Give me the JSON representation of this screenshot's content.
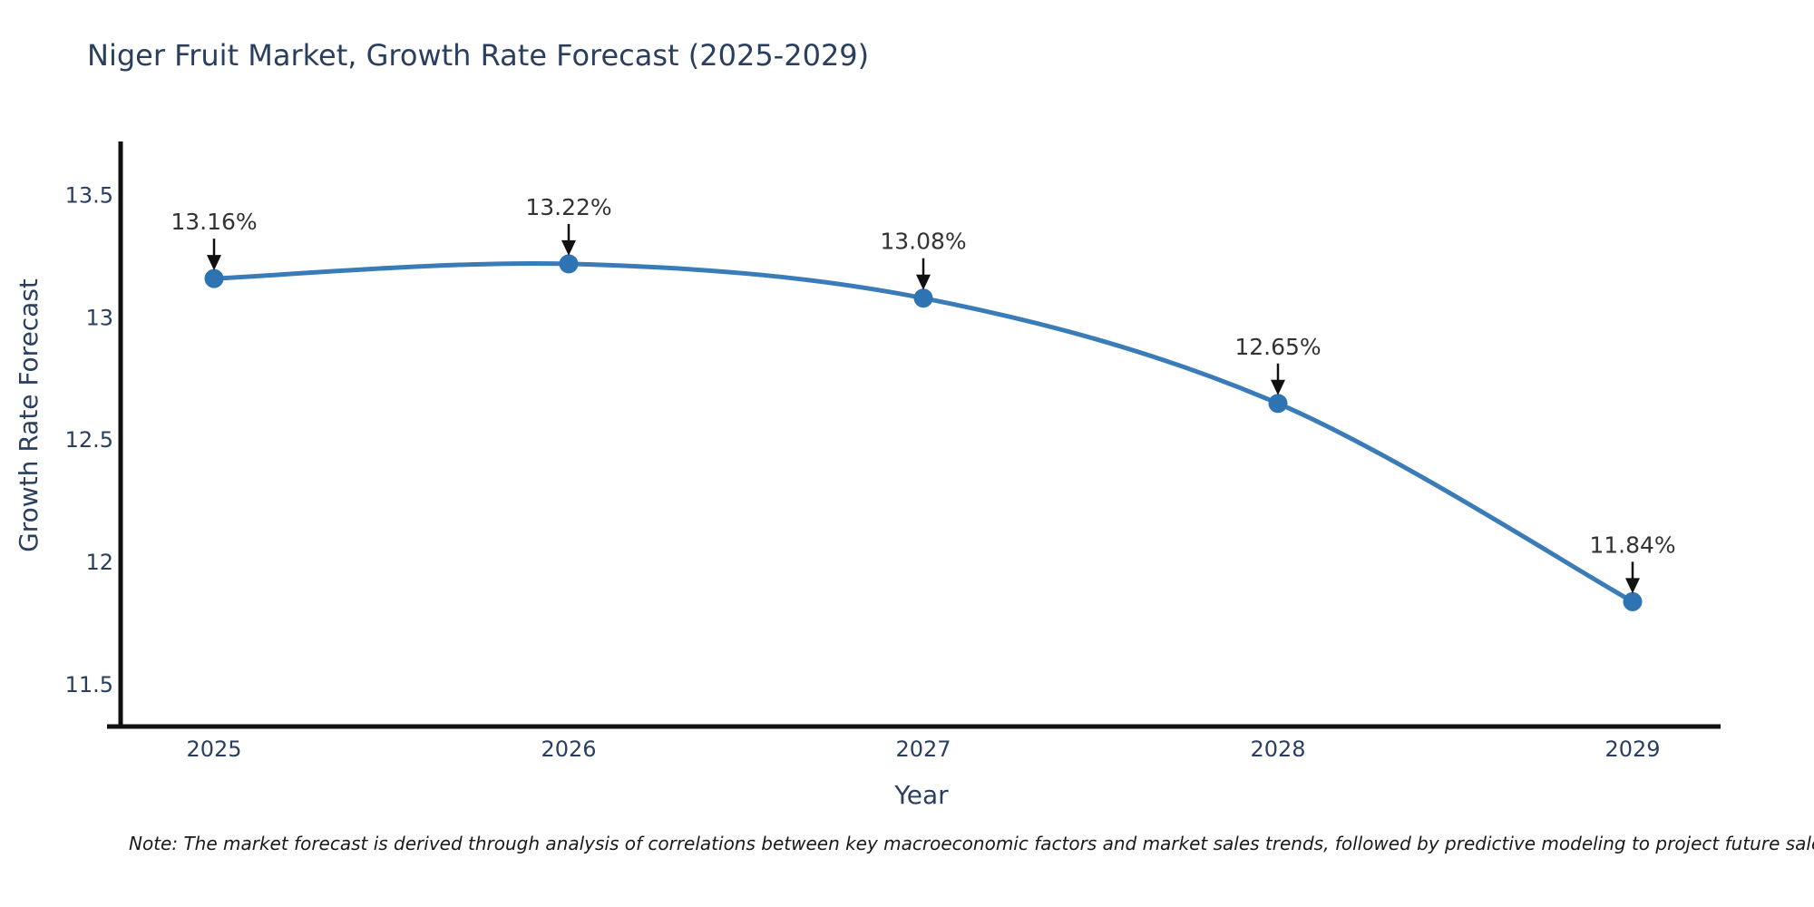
{
  "title": "Niger Fruit Market, Growth Rate Forecast (2025-2029)",
  "note": "Note: The market forecast is derived through analysis of correlations between key macroeconomic factors and market sales trends, followed by predictive modeling to project future sales.",
  "chart_data": {
    "type": "line",
    "title": "Niger Fruit Market, Growth Rate Forecast (2025-2029)",
    "xlabel": "Year",
    "ylabel": "Growth Rate Forecast",
    "categories": [
      "2025",
      "2026",
      "2027",
      "2028",
      "2029"
    ],
    "values": [
      13.16,
      13.22,
      13.08,
      12.65,
      11.84
    ],
    "point_labels": [
      "13.16%",
      "13.22%",
      "13.08%",
      "12.65%",
      "11.84%"
    ],
    "yticks": [
      "13.5",
      "13",
      "12.5",
      "12",
      "11.5"
    ],
    "ytick_values": [
      13.5,
      13.0,
      12.5,
      12.0,
      11.5
    ],
    "ylim": [
      11.33,
      13.72
    ],
    "grid": false,
    "legend": "none",
    "curve": "spline",
    "annotations": "value labels with down arrows above each point",
    "line_color": "#3a7cb8",
    "marker_color": "#2f74b2",
    "axis_color": "#111111",
    "text_color": "#2a3f5f",
    "annotation_color": "#333333",
    "arrow_color": "#111111"
  }
}
